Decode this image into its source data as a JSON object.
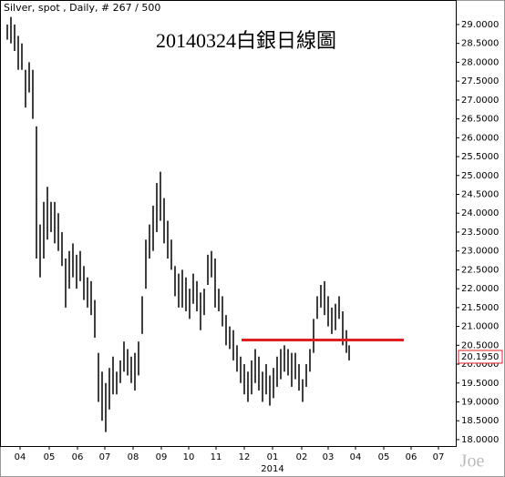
{
  "chart_data": {
    "type": "hilo",
    "header": "Silver, spot , Daily, # 267 / 500",
    "title": "20140324白銀日線圖",
    "watermark": "Joe",
    "year_label": "2014",
    "color": "#000000",
    "xlim": [
      0,
      500
    ],
    "xticks": [
      {
        "value": 22,
        "label": "04"
      },
      {
        "value": 54,
        "label": "05"
      },
      {
        "value": 85,
        "label": "06"
      },
      {
        "value": 115,
        "label": "07"
      },
      {
        "value": 146,
        "label": "08"
      },
      {
        "value": 177,
        "label": "09"
      },
      {
        "value": 207,
        "label": "10"
      },
      {
        "value": 237,
        "label": "11"
      },
      {
        "value": 268,
        "label": "12"
      },
      {
        "value": 299,
        "label": "01"
      },
      {
        "value": 331,
        "label": "02"
      },
      {
        "value": 360,
        "label": "03"
      },
      {
        "value": 390,
        "label": "04"
      },
      {
        "value": 421,
        "label": "05"
      },
      {
        "value": 451,
        "label": "06"
      },
      {
        "value": 481,
        "label": "07"
      }
    ],
    "ylim": [
      17.83,
      29.65
    ],
    "yticks": [
      {
        "value": 18,
        "label": "18.0000"
      },
      {
        "value": 18.5,
        "label": "18.5000"
      },
      {
        "value": 19,
        "label": "19.0000"
      },
      {
        "value": 19.5,
        "label": "19.5000"
      },
      {
        "value": 20,
        "label": "20.0000"
      },
      {
        "value": 20.5,
        "label": "20.5000"
      },
      {
        "value": 21,
        "label": "21.0000"
      },
      {
        "value": 21.5,
        "label": "21.5000"
      },
      {
        "value": 22,
        "label": "22.0000"
      },
      {
        "value": 22.5,
        "label": "22.5000"
      },
      {
        "value": 23,
        "label": "23.0000"
      },
      {
        "value": 23.5,
        "label": "23.5000"
      },
      {
        "value": 24,
        "label": "24.0000"
      },
      {
        "value": 24.5,
        "label": "24.5000"
      },
      {
        "value": 25,
        "label": "25.0000"
      },
      {
        "value": 25.5,
        "label": "25.5000"
      },
      {
        "value": 26,
        "label": "26.0000"
      },
      {
        "value": 26.5,
        "label": "26.5000"
      },
      {
        "value": 27,
        "label": "27.0000"
      },
      {
        "value": 27.5,
        "label": "27.5000"
      },
      {
        "value": 28,
        "label": "28.0000"
      },
      {
        "value": 28.5,
        "label": "28.5000"
      },
      {
        "value": 29,
        "label": "29.0000"
      }
    ],
    "x": [
      8,
      12,
      16,
      20,
      24,
      28,
      32,
      36,
      40,
      44,
      48,
      52,
      56,
      60,
      64,
      68,
      72,
      76,
      80,
      84,
      88,
      92,
      96,
      100,
      104,
      108,
      112,
      116,
      120,
      124,
      128,
      132,
      136,
      140,
      144,
      148,
      152,
      156,
      160,
      164,
      168,
      172,
      176,
      180,
      184,
      188,
      192,
      196,
      200,
      204,
      208,
      212,
      216,
      220,
      224,
      228,
      232,
      236,
      240,
      244,
      248,
      252,
      256,
      260,
      264,
      268,
      272,
      276,
      280,
      284,
      288,
      292,
      296,
      300,
      304,
      308,
      312,
      316,
      320,
      324,
      328,
      332,
      336,
      340,
      344,
      348,
      352,
      356,
      360,
      364,
      368,
      372,
      376,
      380,
      383
    ],
    "high": [
      29.0,
      29.2,
      29.0,
      28.7,
      28.5,
      27.8,
      28.0,
      27.8,
      26.3,
      23.7,
      24.3,
      24.7,
      24.3,
      24.3,
      24.0,
      23.5,
      22.8,
      23.0,
      23.2,
      22.9,
      23.0,
      22.6,
      22.3,
      22.2,
      21.7,
      20.3,
      19.8,
      19.5,
      19.9,
      20.2,
      19.8,
      20.1,
      20.6,
      20.4,
      20.2,
      20.3,
      20.6,
      21.8,
      23.3,
      23.7,
      24.2,
      24.8,
      25.1,
      24.4,
      23.8,
      23.3,
      22.6,
      22.4,
      22.5,
      22.3,
      22.0,
      22.4,
      22.2,
      21.9,
      22.0,
      22.9,
      23.0,
      22.8,
      22.0,
      21.8,
      21.3,
      21.0,
      20.9,
      20.5,
      20.2,
      20.0,
      19.8,
      20.1,
      20.4,
      20.2,
      19.8,
      20.0,
      19.7,
      19.9,
      20.2,
      20.4,
      20.5,
      20.4,
      20.3,
      20.3,
      20.0,
      19.6,
      20.0,
      20.4,
      21.2,
      21.8,
      22.1,
      22.2,
      21.8,
      21.5,
      21.6,
      21.8,
      21.4,
      20.9,
      20.5
    ],
    "low": [
      28.6,
      28.5,
      28.3,
      27.8,
      27.8,
      26.8,
      27.2,
      26.5,
      22.8,
      22.3,
      22.8,
      23.3,
      23.5,
      23.2,
      23.0,
      22.6,
      21.5,
      22.0,
      22.3,
      22.0,
      22.2,
      21.7,
      21.5,
      21.3,
      20.7,
      19.0,
      18.5,
      18.2,
      18.8,
      19.2,
      19.2,
      19.5,
      19.8,
      19.7,
      19.5,
      19.3,
      19.7,
      20.8,
      22.0,
      22.8,
      23.0,
      23.5,
      23.8,
      23.2,
      22.8,
      22.5,
      21.8,
      21.5,
      21.5,
      21.4,
      21.2,
      21.6,
      21.4,
      20.9,
      21.3,
      22.1,
      22.3,
      21.5,
      21.4,
      21.0,
      20.5,
      20.4,
      20.1,
      19.8,
      19.5,
      19.2,
      19.0,
      19.2,
      19.5,
      19.3,
      19.0,
      19.2,
      18.9,
      19.1,
      19.4,
      19.6,
      19.8,
      19.7,
      19.4,
      19.6,
      19.3,
      19.0,
      19.4,
      19.8,
      20.3,
      21.2,
      21.5,
      21.3,
      21.0,
      20.8,
      20.9,
      21.2,
      20.5,
      20.3,
      20.1
    ],
    "last_value": {
      "value": 20.195,
      "label": "20.1950"
    },
    "hline": {
      "value": 20.64,
      "x": [
        265,
        443
      ],
      "color": "#e02020"
    }
  }
}
